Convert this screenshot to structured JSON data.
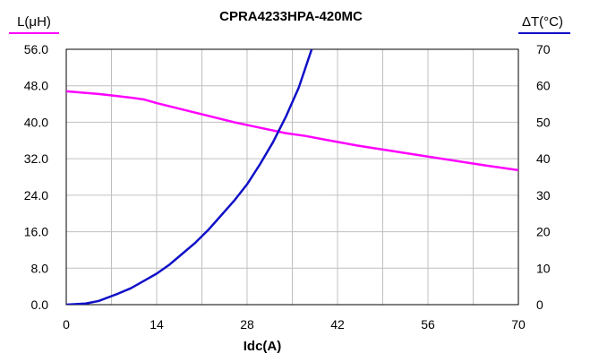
{
  "chart_data": {
    "type": "line",
    "title": "CPRA4233HPA-420MC",
    "xlabel": "Idc(A)",
    "ylabel_left": "L(μH)",
    "ylabel_right": "ΔT(°C)",
    "xlim": [
      0,
      70
    ],
    "ylim_left": [
      0,
      56
    ],
    "ylim_right": [
      0,
      70
    ],
    "x_ticks": [
      "0",
      "14",
      "28",
      "42",
      "56",
      "70"
    ],
    "y_left_ticks": [
      "0.0",
      "8.0",
      "16.0",
      "24.0",
      "32.0",
      "40.0",
      "48.0",
      "56.0"
    ],
    "y_right_ticks": [
      "0",
      "10",
      "20",
      "30",
      "40",
      "50",
      "60",
      "70"
    ],
    "grid": true,
    "colors": {
      "inductance": "#ff00ff",
      "temperature": "#1010c8",
      "grid": "#c0c0c0",
      "axis": "#000000"
    },
    "series": [
      {
        "axis": "left",
        "x": [
          0,
          5,
          10,
          12,
          14,
          18,
          22,
          26,
          30,
          34,
          37,
          40,
          45,
          50,
          55,
          60,
          65,
          70
        ],
        "values": [
          46.8,
          46.2,
          45.4,
          45.0,
          44.2,
          42.8,
          41.4,
          40.0,
          38.8,
          37.6,
          37.0,
          36.2,
          34.9,
          33.8,
          32.7,
          31.6,
          30.5,
          29.5
        ]
      },
      {
        "axis": "right",
        "x": [
          0,
          3,
          5,
          8,
          10,
          12,
          14,
          16,
          18,
          20,
          22,
          24,
          26,
          28,
          30,
          32,
          34,
          36,
          38
        ],
        "values": [
          0,
          0.3,
          1,
          3,
          4.5,
          6.5,
          8.5,
          11,
          14,
          17,
          20.5,
          24.5,
          28.5,
          33,
          38.5,
          44.5,
          51.5,
          59.5,
          70
        ]
      }
    ]
  }
}
